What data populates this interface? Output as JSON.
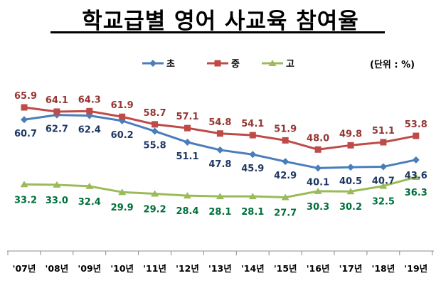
{
  "title": "학교급별 영어 사교육 참여율",
  "unit_label": "(단위 : %)",
  "chart_data": {
    "type": "line",
    "title": "학교급별 영어 사교육 참여율",
    "categories": [
      "'07년",
      "'08년",
      "'09년",
      "'10년",
      "'11년",
      "'12년",
      "'13년",
      "'14년",
      "'15년",
      "'16년",
      "'17년",
      "'18년",
      "'19년"
    ],
    "series": [
      {
        "name": "초",
        "color": "#4A7EBB",
        "label_color": "#1F3864",
        "values": [
          60.7,
          62.7,
          62.4,
          60.2,
          55.8,
          51.1,
          47.8,
          45.9,
          42.9,
          40.1,
          40.5,
          40.7,
          43.6
        ]
      },
      {
        "name": "중",
        "color": "#BE4B48",
        "label_color": "#943634",
        "values": [
          65.9,
          64.1,
          64.3,
          61.9,
          58.7,
          57.1,
          54.8,
          54.1,
          51.9,
          48.0,
          49.8,
          51.1,
          53.8
        ]
      },
      {
        "name": "고",
        "color": "#9BBB59",
        "label_color": "#00703C",
        "values": [
          33.2,
          33.0,
          32.4,
          29.9,
          29.2,
          28.4,
          28.1,
          28.1,
          27.7,
          30.3,
          30.2,
          32.5,
          36.3
        ]
      }
    ],
    "legend_position": "top",
    "grid": false
  }
}
